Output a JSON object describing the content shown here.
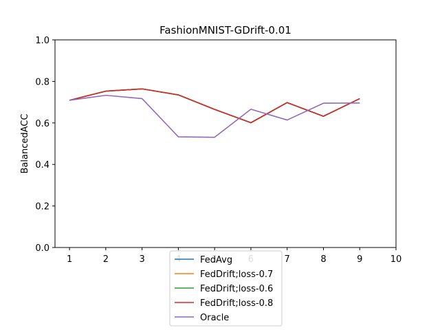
{
  "chart_data": {
    "type": "line",
    "title": "FashionMNIST-GDrift-0.01",
    "xlabel": "",
    "ylabel": "BalancedACC",
    "xlim": [
      0.6,
      10
    ],
    "ylim": [
      0,
      1
    ],
    "xticks": [
      1,
      2,
      3,
      4,
      5,
      6,
      7,
      8,
      9,
      10
    ],
    "yticks": [
      "0.0",
      "0.2",
      "0.4",
      "0.6",
      "0.8",
      "1.0"
    ],
    "x": [
      1,
      2,
      3,
      4,
      5,
      6,
      7,
      8,
      9
    ],
    "legend_position": "bottom-center",
    "grid": false,
    "series": [
      {
        "name": "FedAvg",
        "color": "#1f77b4",
        "values": [
          0.709,
          0.753,
          0.764,
          0.735,
          0.665,
          0.601,
          0.698,
          0.632,
          0.717
        ]
      },
      {
        "name": "FedDrift;loss-0.7",
        "color": "#ff7f0e",
        "values": [
          0.709,
          0.753,
          0.764,
          0.735,
          0.665,
          0.601,
          0.698,
          0.632,
          0.717
        ]
      },
      {
        "name": "FedDrift;loss-0.6",
        "color": "#2ca02c",
        "values": [
          0.709,
          0.753,
          0.764,
          0.735,
          0.665,
          0.601,
          0.698,
          0.632,
          0.717
        ]
      },
      {
        "name": "FedDrift;loss-0.8",
        "color": "#d62728",
        "values": [
          0.709,
          0.753,
          0.764,
          0.735,
          0.665,
          0.601,
          0.698,
          0.632,
          0.717
        ]
      },
      {
        "name": "Oracle",
        "color": "#9467bd",
        "values": [
          0.709,
          0.733,
          0.717,
          0.533,
          0.531,
          0.666,
          0.614,
          0.695,
          0.696
        ]
      }
    ]
  }
}
